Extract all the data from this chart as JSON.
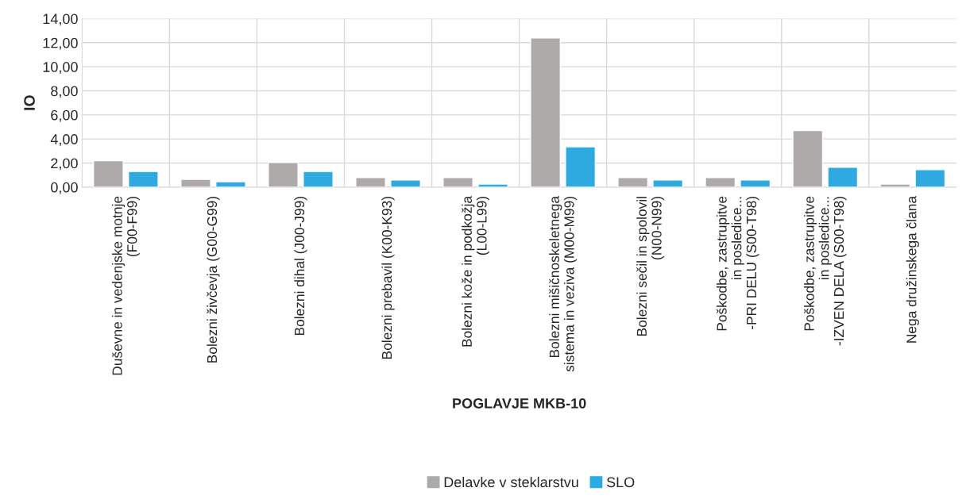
{
  "chart_data": {
    "type": "bar",
    "xlabel": "POGLAVJE MKB-10",
    "ylabel": "IO",
    "categories": [
      "Duševne in vedenjske motnje\n(F00-F99)",
      "Bolezni živčevja (G00-G99)",
      "Bolezni dihal (J00-J99)",
      "Bolezni prebavil (K00-K93)",
      "Bolezni kože in podkožja\n(L00-L99)",
      "Bolezni mišičnoskeletnega\nsistema in veziva (M00-M99)",
      "Bolezni sečil in spolovil\n(N00-N99)",
      "Poškodbe, zastrupitve\nin posledice...\n-PRI DELU (S00-T98)",
      "Poškodbe, zastrupitve\nin posledice...\n-IZVEN DELA (S00-T98)",
      "Nega družinskega člana"
    ],
    "series": [
      {
        "name": "Delavke v steklarstvu",
        "color": "#aeaaaa",
        "values": [
          2.2,
          0.65,
          2.05,
          0.8,
          0.8,
          12.4,
          0.8,
          0.8,
          4.7,
          0.25
        ]
      },
      {
        "name": "SLO",
        "color": "#2eaae1",
        "values": [
          1.3,
          0.45,
          1.3,
          0.6,
          0.25,
          3.35,
          0.6,
          0.6,
          1.65,
          1.45
        ]
      }
    ],
    "ylim": [
      0,
      14
    ],
    "yticks": [
      {
        "value": 0,
        "label": "0,00"
      },
      {
        "value": 2,
        "label": "2,00"
      },
      {
        "value": 4,
        "label": "4,00"
      },
      {
        "value": 6,
        "label": "6,00"
      },
      {
        "value": 8,
        "label": "8,00"
      },
      {
        "value": 10,
        "label": "10,00"
      },
      {
        "value": 12,
        "label": "12,00"
      },
      {
        "value": 14,
        "label": "14,00"
      }
    ],
    "grid": true,
    "legend": "bottom"
  }
}
